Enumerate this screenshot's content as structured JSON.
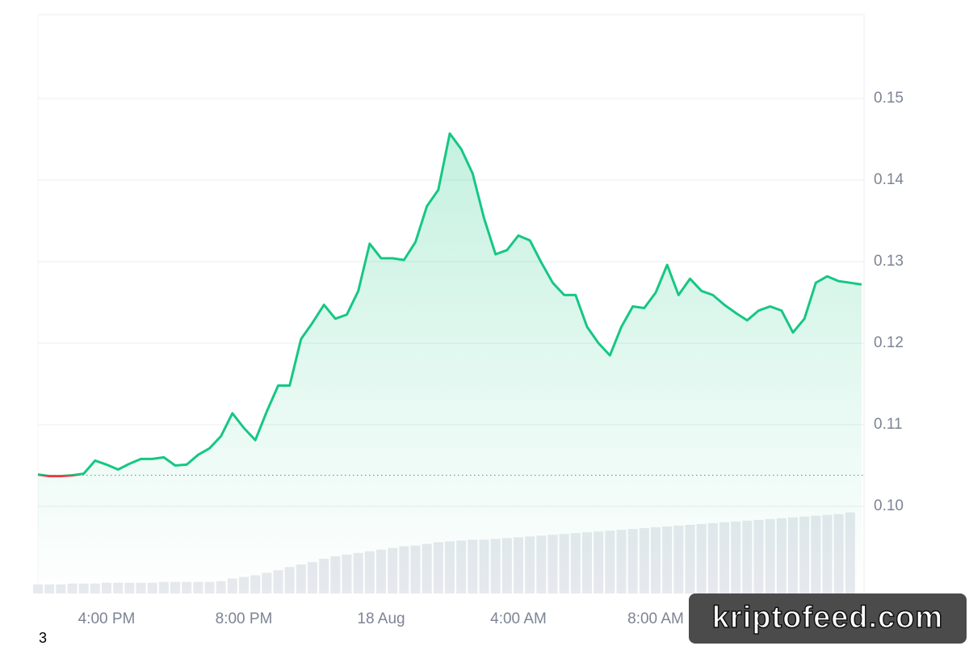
{
  "chart_data": {
    "type": "line",
    "categories": [
      null,
      null,
      null,
      null,
      null,
      null,
      "4:00 PM",
      null,
      null,
      null,
      null,
      null,
      null,
      null,
      null,
      null,
      null,
      null,
      "8:00 PM",
      null,
      null,
      null,
      null,
      null,
      null,
      null,
      null,
      null,
      null,
      null,
      "18 Aug",
      null,
      null,
      null,
      null,
      null,
      null,
      null,
      null,
      null,
      null,
      null,
      "4:00 AM",
      null,
      null,
      null,
      null,
      null,
      null,
      null,
      null,
      null,
      null,
      null,
      "8:00 AM",
      null,
      null,
      null,
      null,
      null,
      null,
      null,
      null,
      null,
      null,
      null,
      null,
      null,
      null,
      null,
      null,
      null,
      null
    ],
    "series": [
      {
        "name": "Price",
        "color": "#16c784",
        "down_color": "#ea3943",
        "values": [
          0.1039,
          0.1037,
          0.1037,
          0.1038,
          0.104,
          0.1056,
          0.1051,
          0.1045,
          0.1052,
          0.1058,
          0.1058,
          0.106,
          0.105,
          0.1051,
          0.1063,
          0.1071,
          0.1086,
          0.1114,
          0.1096,
          0.1081,
          0.1116,
          0.1148,
          0.1148,
          0.1205,
          0.1225,
          0.1247,
          0.123,
          0.1235,
          0.1264,
          0.1322,
          0.1304,
          0.1304,
          0.1302,
          0.1324,
          0.1368,
          0.1388,
          0.1457,
          0.1438,
          0.1408,
          0.1353,
          0.1309,
          0.1314,
          0.1332,
          0.1326,
          0.1299,
          0.1274,
          0.1259,
          0.1259,
          0.122,
          0.12,
          0.1185,
          0.122,
          0.1245,
          0.1243,
          0.1262,
          0.1296,
          0.1259,
          0.1279,
          0.1264,
          0.1259,
          0.1247,
          0.1237,
          0.1228,
          0.124,
          0.1245,
          0.124,
          0.1213,
          0.123,
          0.1274,
          0.1282,
          0.1276,
          0.1274,
          0.1272
        ]
      },
      {
        "name": "Volume",
        "color": "#e6e9ee",
        "axis": "y2",
        "values": [
          11,
          11,
          11,
          12,
          12,
          12,
          13,
          13,
          13,
          13,
          13,
          14,
          14,
          14,
          14,
          14,
          15,
          18,
          20,
          22,
          25,
          28,
          32,
          35,
          38,
          42,
          45,
          47,
          49,
          51,
          53,
          55,
          57,
          58,
          60,
          62,
          63,
          64,
          65,
          65,
          66,
          67,
          68,
          69,
          70,
          71,
          72,
          73,
          74,
          75,
          76,
          77,
          78,
          79,
          80,
          81,
          82,
          83,
          84,
          85,
          86,
          87,
          88,
          89,
          90,
          91,
          92,
          93,
          94,
          95,
          96,
          98,
          null
        ]
      }
    ],
    "reference_line": 0.1038,
    "ylim": [
      0.0893,
      0.1603
    ],
    "yticks": [
      {
        "value": 0.1,
        "label": "0.10"
      },
      0.11,
      0.12,
      0.13,
      0.14,
      0.15
    ],
    "y2lim": [
      0,
      700
    ],
    "grid": true,
    "footer_text": "3",
    "watermark": "kriptofeed.com"
  }
}
